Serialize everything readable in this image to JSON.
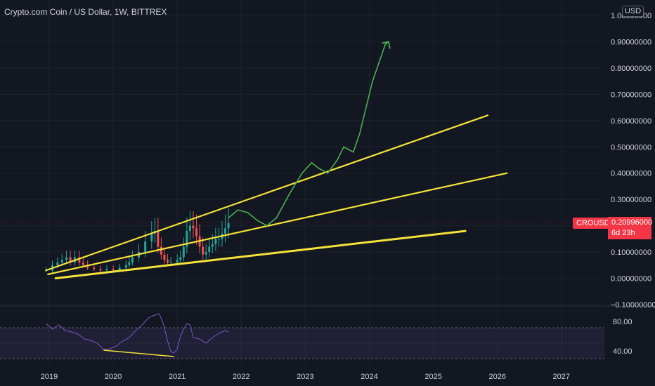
{
  "header": {
    "symbol_title": "Crypto.com Coin / US Dollar, 1W, BITTREX",
    "currency_badge": "USD"
  },
  "last_price": {
    "symbol": "CROUSD",
    "value": "0.20996000",
    "countdown": "6d 23h"
  },
  "colors": {
    "background": "#131722",
    "trendline": "#f5e23a",
    "projection": "#4caf50",
    "candle_up": "#26a69a",
    "candle_down": "#ef5350",
    "rsi": "#7e57c2",
    "price_tag": "#f23645"
  },
  "chart_data": [
    {
      "type": "candlestick",
      "title": "Crypto.com Coin / US Dollar, 1W, BITTREX",
      "y_axis": {
        "ticks": [
          "1.00000000",
          "0.90000000",
          "0.80000000",
          "0.70000000",
          "0.60000000",
          "0.50000000",
          "0.40000000",
          "0.30000000",
          "0.20000000",
          "0.10000000",
          "0.00000000",
          "−0.10000000"
        ],
        "ylim": [
          -0.1,
          1.0
        ]
      },
      "x_axis": {
        "ticks": [
          "2019",
          "2020",
          "2021",
          "2022",
          "2023",
          "2024",
          "2025",
          "2026",
          "2027"
        ],
        "xlim": [
          2018.95,
          2027.8
        ]
      },
      "price_path": {
        "t": [
          2018.95,
          2019.05,
          2019.13,
          2019.2,
          2019.27,
          2019.33,
          2019.4,
          2019.47,
          2019.53,
          2019.6,
          2019.7,
          2019.8,
          2019.9,
          2020.0,
          2020.1,
          2020.2,
          2020.25,
          2020.3,
          2020.4,
          2020.5,
          2020.6,
          2020.65,
          2020.7,
          2020.75,
          2020.8,
          2020.85,
          2020.9,
          2021.0,
          2021.05,
          2021.1,
          2021.15,
          2021.2,
          2021.25,
          2021.3,
          2021.35,
          2021.4,
          2021.45,
          2021.5,
          2021.55,
          2021.6,
          2021.65,
          2021.7,
          2021.75,
          2021.8
        ],
        "price": [
          0.03,
          0.05,
          0.06,
          0.07,
          0.08,
          0.06,
          0.08,
          0.06,
          0.05,
          0.04,
          0.035,
          0.03,
          0.035,
          0.03,
          0.04,
          0.05,
          0.06,
          0.08,
          0.1,
          0.14,
          0.17,
          0.18,
          0.12,
          0.09,
          0.07,
          0.06,
          0.06,
          0.07,
          0.08,
          0.12,
          0.18,
          0.2,
          0.19,
          0.16,
          0.12,
          0.09,
          0.1,
          0.12,
          0.13,
          0.15,
          0.15,
          0.17,
          0.19,
          0.21
        ]
      },
      "trendlines": [
        {
          "from": [
            2018.95,
            0.03
          ],
          "to": [
            2025.85,
            0.62
          ]
        },
        {
          "from": [
            2018.98,
            0.015
          ],
          "to": [
            2026.15,
            0.4
          ]
        },
        {
          "from": [
            2019.1,
            0.0
          ],
          "to": [
            2025.5,
            0.18
          ]
        }
      ],
      "projection_path": {
        "t": [
          2021.8,
          2021.95,
          2022.1,
          2022.25,
          2022.4,
          2022.55,
          2022.75,
          2022.95,
          2023.1,
          2023.2,
          2023.35,
          2023.5,
          2023.6,
          2023.75,
          2023.85,
          2023.95,
          2024.05,
          2024.15,
          2024.25,
          2024.3
        ],
        "price": [
          0.23,
          0.26,
          0.25,
          0.22,
          0.2,
          0.23,
          0.32,
          0.4,
          0.44,
          0.42,
          0.4,
          0.45,
          0.5,
          0.48,
          0.55,
          0.65,
          0.75,
          0.82,
          0.89,
          0.9
        ]
      }
    },
    {
      "type": "line",
      "name": "RSI",
      "y_axis": {
        "ticks": [
          "80.00",
          "40.00"
        ],
        "ylim": [
          30,
          100
        ]
      },
      "band": [
        40,
        70
      ],
      "t": [
        2018.95,
        2019.05,
        2019.15,
        2019.25,
        2019.35,
        2019.45,
        2019.55,
        2019.65,
        2019.75,
        2019.85,
        2019.95,
        2020.05,
        2020.15,
        2020.25,
        2020.35,
        2020.45,
        2020.55,
        2020.65,
        2020.72,
        2020.78,
        2020.85,
        2020.9,
        2020.95,
        2021.0,
        2021.05,
        2021.1,
        2021.15,
        2021.2,
        2021.25,
        2021.35,
        2021.45,
        2021.55,
        2021.65,
        2021.75,
        2021.8
      ],
      "values": [
        80,
        72,
        78,
        70,
        68,
        65,
        58,
        56,
        52,
        43,
        44,
        48,
        55,
        60,
        70,
        78,
        88,
        92,
        94,
        80,
        55,
        40,
        38,
        44,
        62,
        72,
        80,
        78,
        60,
        58,
        52,
        60,
        66,
        70,
        68
      ],
      "divergence_line": {
        "from": [
          2019.85,
          42
        ],
        "to": [
          2020.95,
          33
        ]
      }
    }
  ]
}
